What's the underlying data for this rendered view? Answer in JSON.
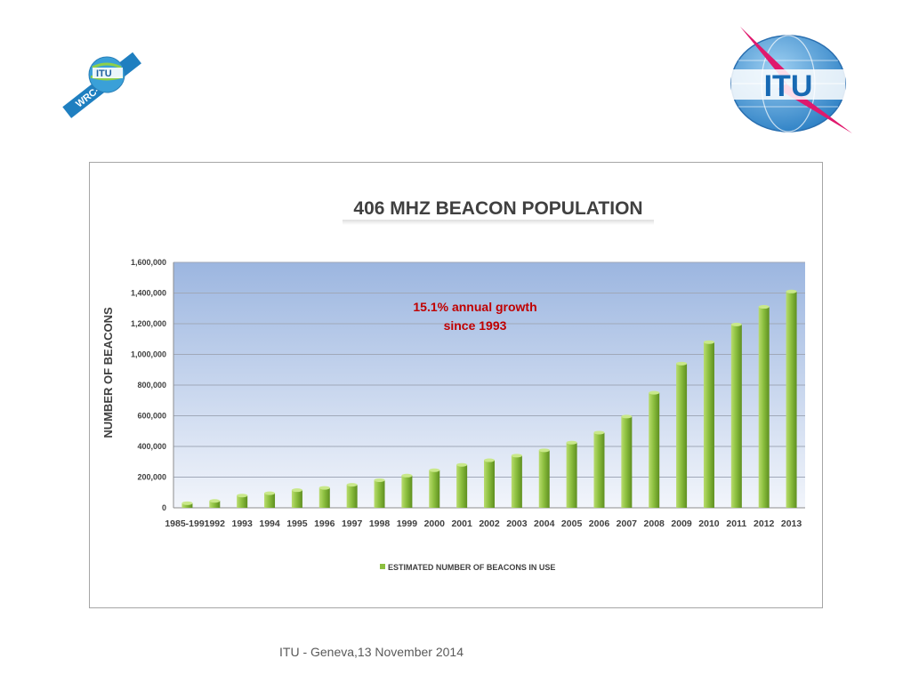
{
  "footer": "ITU - Geneva,13 November 2014",
  "logos": {
    "left": {
      "icon": "wrc-15-satellite-logo",
      "text": "ITU",
      "band_text": "WRC-15"
    },
    "right": {
      "icon": "itu-globe-logo",
      "text": "ITU"
    }
  },
  "chart_data": {
    "type": "bar",
    "title": "406 MHZ BEACON POPULATION",
    "ylabel": "NUMBER OF BEACONS",
    "xlabel": "",
    "ylim": [
      0,
      1600000
    ],
    "yticks": [
      "0",
      "200,000",
      "400,000",
      "600,000",
      "800,000",
      "1,000,000",
      "1,200,000",
      "1,400,000",
      "1,600,000"
    ],
    "categories": [
      "1985-1991",
      "1992",
      "1993",
      "1994",
      "1995",
      "1996",
      "1997",
      "1998",
      "1999",
      "2000",
      "2001",
      "2002",
      "2003",
      "2004",
      "2005",
      "2006",
      "2007",
      "2008",
      "2009",
      "2010",
      "2011",
      "2012",
      "2013"
    ],
    "series": [
      {
        "name": "ESTIMATED NUMBER OF BEACONS IN USE",
        "values": [
          30000,
          45000,
          80000,
          95000,
          115000,
          130000,
          150000,
          180000,
          210000,
          245000,
          280000,
          310000,
          340000,
          375000,
          425000,
          490000,
          595000,
          750000,
          940000,
          1080000,
          1195000,
          1310000,
          1410000
        ]
      }
    ],
    "annotation": {
      "line1": "15.1%  annual growth",
      "line2": "since 1993"
    },
    "legend_position": "bottom",
    "grid": true,
    "colors": {
      "bar": "#8cbf3f",
      "bar_dark": "#5e8f1f",
      "plot_top": "#9cb6e0",
      "plot_bottom": "#f2f5fb",
      "annotation": "#c00000"
    }
  }
}
